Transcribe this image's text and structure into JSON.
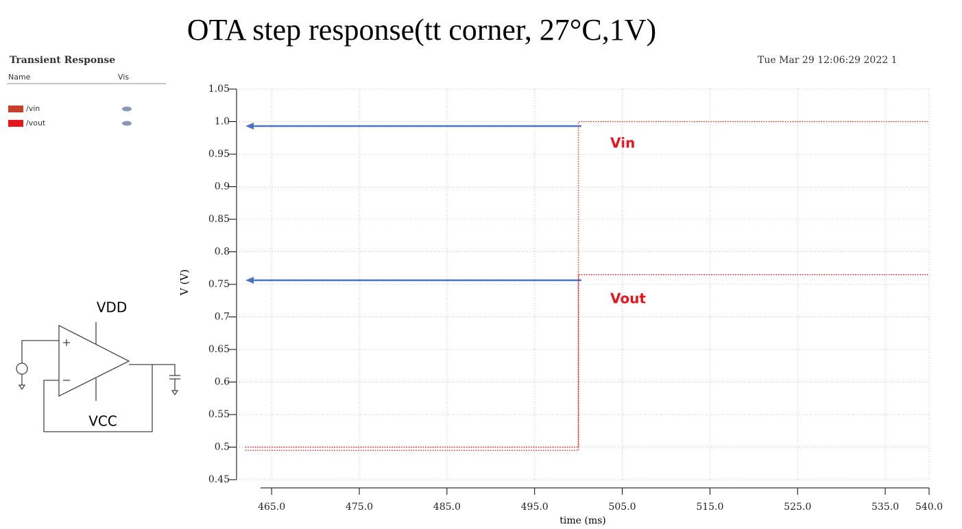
{
  "chart_data": {
    "type": "line",
    "title": "OTA step response(tt corner, 27°C,1V)",
    "panel_title": "Transient Response",
    "legend_headers": [
      "Name",
      "Vis"
    ],
    "timestamp": "Tue Mar 29 12:06:29 2022  1",
    "y_label": "V (V)",
    "x_label": "time (ms)",
    "annotations": [
      "Vin",
      "Vout"
    ],
    "schematic_labels": [
      "VDD",
      "VCC"
    ],
    "x": [
      462,
      500,
      500,
      540
    ],
    "series": [
      {
        "name": "/vin",
        "color": "#c8402a",
        "values": [
          0.495,
          0.495,
          1.0,
          1.0
        ]
      },
      {
        "name": "/vout",
        "color": "#e8141c",
        "values": [
          0.5,
          0.5,
          0.765,
          0.765
        ]
      }
    ],
    "xlim": [
      461,
      540
    ],
    "ylim": [
      0.45,
      1.05
    ],
    "xticks": [
      {
        "value": 465,
        "label": "465.0"
      },
      {
        "value": 475,
        "label": "475.0"
      },
      {
        "value": 485,
        "label": "485.0"
      },
      {
        "value": 495,
        "label": "495.0"
      },
      {
        "value": 505,
        "label": "505.0"
      },
      {
        "value": 515,
        "label": "515.0"
      },
      {
        "value": 525,
        "label": "525.0"
      },
      {
        "value": 535,
        "label": "535.0"
      },
      {
        "value": 540,
        "label": "540.0"
      }
    ],
    "yticks": [
      0.45,
      0.5,
      0.55,
      0.6,
      0.65,
      0.7,
      0.75,
      0.8,
      0.85,
      0.9,
      0.95,
      {
        "value": 1,
        "label": "1.0"
      },
      1.05
    ],
    "grid": true
  }
}
